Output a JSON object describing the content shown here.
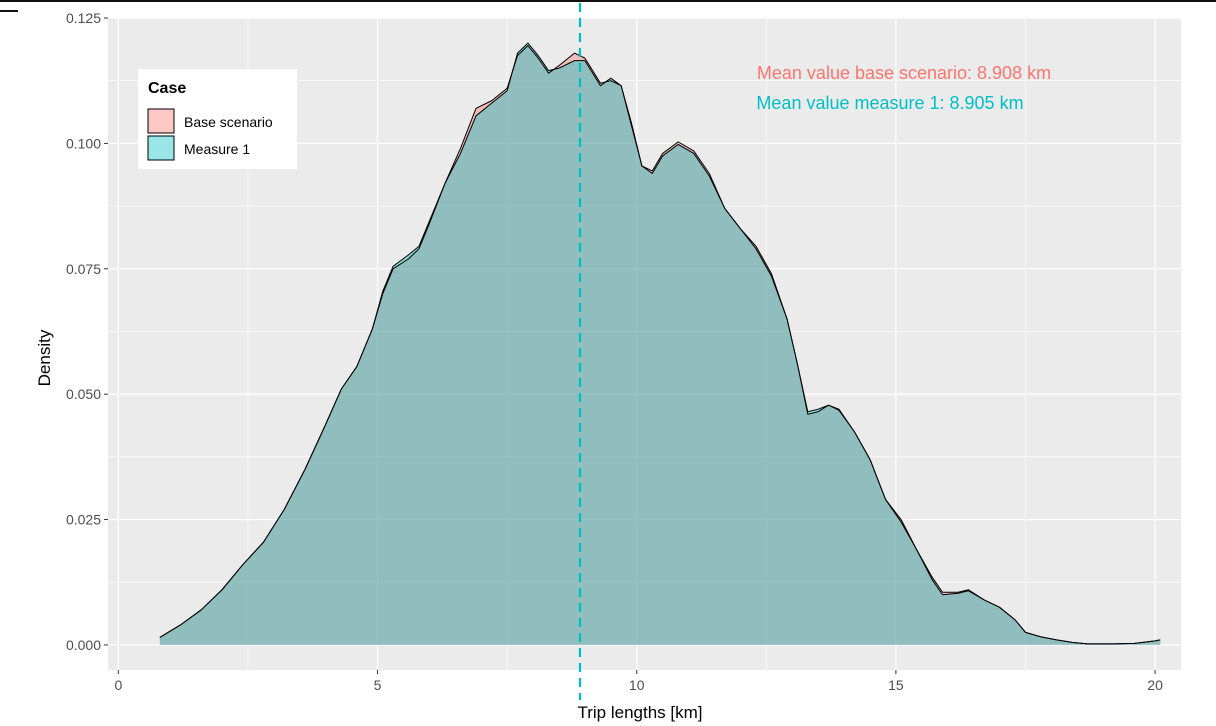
{
  "chart_data": {
    "type": "area",
    "title": "",
    "xlabel": "Trip lengths [km]",
    "ylabel": "Density",
    "xlim": [
      -0.2,
      20.5
    ],
    "ylim": [
      -0.005,
      0.125
    ],
    "x_ticks": [
      0,
      5,
      10,
      15,
      20
    ],
    "x_tick_labels": [
      "0",
      "5",
      "10",
      "15",
      "20"
    ],
    "y_ticks": [
      0.0,
      0.025,
      0.05,
      0.075,
      0.1,
      0.125
    ],
    "y_tick_labels": [
      "0.000",
      "0.025",
      "0.050",
      "0.075",
      "0.100",
      "0.125"
    ],
    "grid": true,
    "legend": {
      "title": "Case",
      "position": "top-left",
      "entries": [
        "Base scenario",
        "Measure 1"
      ]
    },
    "series": [
      {
        "name": "Base scenario",
        "color": "#F8766D",
        "points": [
          [
            0.8,
            0.0015
          ],
          [
            1.2,
            0.004
          ],
          [
            1.6,
            0.007
          ],
          [
            2.0,
            0.011
          ],
          [
            2.4,
            0.016
          ],
          [
            2.8,
            0.0205
          ],
          [
            3.2,
            0.027
          ],
          [
            3.6,
            0.035
          ],
          [
            4.0,
            0.044
          ],
          [
            4.3,
            0.051
          ],
          [
            4.6,
            0.0555
          ],
          [
            4.9,
            0.063
          ],
          [
            5.1,
            0.07
          ],
          [
            5.3,
            0.075
          ],
          [
            5.6,
            0.077
          ],
          [
            5.8,
            0.079
          ],
          [
            6.0,
            0.084
          ],
          [
            6.3,
            0.092
          ],
          [
            6.6,
            0.099
          ],
          [
            6.9,
            0.107
          ],
          [
            7.2,
            0.1085
          ],
          [
            7.5,
            0.111
          ],
          [
            7.7,
            0.1175
          ],
          [
            7.9,
            0.1195
          ],
          [
            8.1,
            0.117
          ],
          [
            8.3,
            0.114
          ],
          [
            8.5,
            0.1155
          ],
          [
            8.8,
            0.118
          ],
          [
            9.0,
            0.117
          ],
          [
            9.3,
            0.112
          ],
          [
            9.5,
            0.1125
          ],
          [
            9.7,
            0.1115
          ],
          [
            9.9,
            0.104
          ],
          [
            10.1,
            0.0955
          ],
          [
            10.3,
            0.0945
          ],
          [
            10.5,
            0.098
          ],
          [
            10.8,
            0.1003
          ],
          [
            11.1,
            0.0985
          ],
          [
            11.4,
            0.094
          ],
          [
            11.7,
            0.087
          ],
          [
            12.0,
            0.083
          ],
          [
            12.3,
            0.0795
          ],
          [
            12.6,
            0.074
          ],
          [
            12.9,
            0.065
          ],
          [
            13.1,
            0.056
          ],
          [
            13.3,
            0.046
          ],
          [
            13.5,
            0.0465
          ],
          [
            13.7,
            0.0478
          ],
          [
            13.9,
            0.047
          ],
          [
            14.2,
            0.0425
          ],
          [
            14.5,
            0.037
          ],
          [
            14.8,
            0.029
          ],
          [
            15.1,
            0.025
          ],
          [
            15.4,
            0.019
          ],
          [
            15.7,
            0.0135
          ],
          [
            15.9,
            0.0105
          ],
          [
            16.2,
            0.0105
          ],
          [
            16.4,
            0.011
          ],
          [
            16.7,
            0.009
          ],
          [
            17.0,
            0.0075
          ],
          [
            17.3,
            0.005
          ],
          [
            17.5,
            0.0025
          ],
          [
            17.8,
            0.0016
          ],
          [
            18.1,
            0.001
          ],
          [
            18.4,
            0.0005
          ],
          [
            18.7,
            0.0002
          ],
          [
            19.2,
            0.0002
          ],
          [
            19.6,
            0.0003
          ],
          [
            20.0,
            0.0008
          ],
          [
            20.1,
            0.001
          ]
        ]
      },
      {
        "name": "Measure 1",
        "color": "#00BFC4",
        "points": [
          [
            0.8,
            0.0015
          ],
          [
            1.2,
            0.004
          ],
          [
            1.6,
            0.007
          ],
          [
            2.0,
            0.011
          ],
          [
            2.4,
            0.016
          ],
          [
            2.8,
            0.0205
          ],
          [
            3.2,
            0.027
          ],
          [
            3.6,
            0.035
          ],
          [
            4.0,
            0.044
          ],
          [
            4.3,
            0.051
          ],
          [
            4.6,
            0.0555
          ],
          [
            4.9,
            0.063
          ],
          [
            5.1,
            0.0705
          ],
          [
            5.3,
            0.0755
          ],
          [
            5.6,
            0.0778
          ],
          [
            5.8,
            0.0795
          ],
          [
            6.0,
            0.0845
          ],
          [
            6.3,
            0.092
          ],
          [
            6.6,
            0.098
          ],
          [
            6.9,
            0.1055
          ],
          [
            7.2,
            0.108
          ],
          [
            7.5,
            0.1105
          ],
          [
            7.7,
            0.118
          ],
          [
            7.9,
            0.12
          ],
          [
            8.1,
            0.1175
          ],
          [
            8.3,
            0.1145
          ],
          [
            8.5,
            0.115
          ],
          [
            8.8,
            0.1165
          ],
          [
            9.0,
            0.1165
          ],
          [
            9.3,
            0.1115
          ],
          [
            9.5,
            0.113
          ],
          [
            9.7,
            0.1115
          ],
          [
            9.9,
            0.1035
          ],
          [
            10.1,
            0.0955
          ],
          [
            10.3,
            0.094
          ],
          [
            10.5,
            0.0975
          ],
          [
            10.8,
            0.0998
          ],
          [
            11.1,
            0.098
          ],
          [
            11.4,
            0.0935
          ],
          [
            11.7,
            0.087
          ],
          [
            12.0,
            0.083
          ],
          [
            12.3,
            0.079
          ],
          [
            12.6,
            0.0735
          ],
          [
            12.9,
            0.065
          ],
          [
            13.1,
            0.056
          ],
          [
            13.3,
            0.0465
          ],
          [
            13.5,
            0.047
          ],
          [
            13.7,
            0.0478
          ],
          [
            13.9,
            0.0468
          ],
          [
            14.2,
            0.0425
          ],
          [
            14.5,
            0.037
          ],
          [
            14.8,
            0.029
          ],
          [
            15.1,
            0.0245
          ],
          [
            15.4,
            0.019
          ],
          [
            15.7,
            0.013
          ],
          [
            15.9,
            0.01
          ],
          [
            16.2,
            0.0103
          ],
          [
            16.4,
            0.0108
          ],
          [
            16.7,
            0.009
          ],
          [
            17.0,
            0.0075
          ],
          [
            17.3,
            0.005
          ],
          [
            17.5,
            0.0025
          ],
          [
            17.8,
            0.0016
          ],
          [
            18.1,
            0.001
          ],
          [
            18.4,
            0.0005
          ],
          [
            18.7,
            0.0002
          ],
          [
            19.2,
            0.0002
          ],
          [
            19.6,
            0.0003
          ],
          [
            20.0,
            0.0008
          ],
          [
            20.1,
            0.001
          ]
        ]
      }
    ],
    "mean_line": {
      "x": 8.905,
      "color": "#00BFC4",
      "style": "dashed"
    },
    "annotations": [
      {
        "text": "Mean value base scenario: 8.908 km",
        "color": "#F8766D"
      },
      {
        "text": "Mean value measure 1: 8.905 km",
        "color": "#00BFC4"
      }
    ]
  }
}
